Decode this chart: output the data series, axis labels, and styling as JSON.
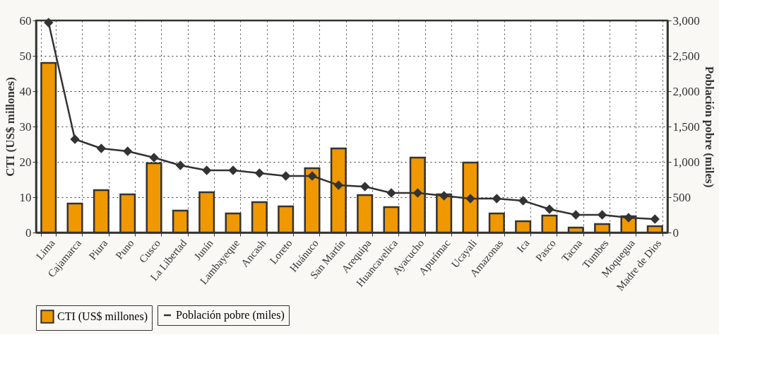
{
  "chart_data": {
    "type": "bar",
    "categories": [
      "Lima",
      "Cajamarca",
      "Piura",
      "Puno",
      "Cusco",
      "La Libertad",
      "Junín",
      "Lambayeque",
      "Ancash",
      "Loreto",
      "Huánuco",
      "San Martín",
      "Arequipa",
      "Huancavelica",
      "Ayacucho",
      "Apurímac",
      "Ucayali",
      "Amazonas",
      "Ica",
      "Pasco",
      "Tacna",
      "Tumbes",
      "Moquegua",
      "Madre de Dios"
    ],
    "series": [
      {
        "name": "CTI (US$ millones)",
        "color": "#f09800",
        "values": [
          48,
          8.2,
          12,
          10.8,
          19.6,
          6.2,
          11.4,
          5.4,
          8.6,
          7.4,
          18.2,
          23.8,
          10.6,
          7.2,
          21.2,
          10.8,
          19.8,
          5.4,
          3.2,
          4.8,
          1.4,
          2.4,
          4.6,
          1.8
        ]
      },
      {
        "name": "Población pobre (miles)",
        "color": "#333333",
        "type": "line",
        "axis": "y2",
        "marker": "diamond",
        "values": [
          2970,
          1320,
          1190,
          1150,
          1060,
          950,
          880,
          880,
          840,
          800,
          800,
          670,
          650,
          560,
          560,
          520,
          480,
          480,
          450,
          330,
          250,
          250,
          210,
          190
        ]
      }
    ],
    "ylabel": "CTI (US$ millones)",
    "y2label": "Población pobre (miles)",
    "ylim": [
      0,
      60
    ],
    "yticks": [
      0,
      10,
      20,
      30,
      40,
      50,
      60
    ],
    "y2lim": [
      0,
      3000
    ],
    "y2ticks": [
      {
        "value": 0,
        "label": "0"
      },
      {
        "value": 500,
        "label": "500"
      },
      {
        "value": 1000,
        "label": "1,000"
      },
      {
        "value": 1500,
        "label": "1,500"
      },
      {
        "value": 2000,
        "label": "2,000"
      },
      {
        "value": 2500,
        "label": "2,500"
      },
      {
        "value": 3000,
        "label": "3,000"
      }
    ],
    "grid": true,
    "legend": "bottom"
  }
}
